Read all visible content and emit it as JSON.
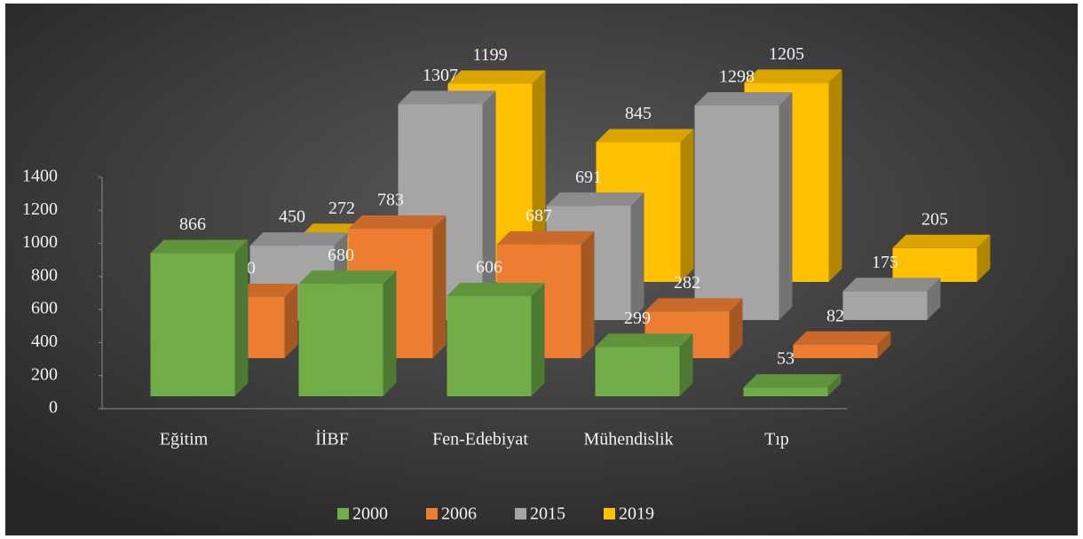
{
  "chart_data": {
    "type": "bar3d",
    "categories": [
      "Eğitim",
      "İİBF",
      "Fen-Edebiyat",
      "Mühendislik",
      "Tıp"
    ],
    "series": [
      {
        "name": "2000",
        "color": "#70ad47",
        "values": [
          866,
          680,
          606,
          299,
          53
        ]
      },
      {
        "name": "2006",
        "color": "#ed7d31",
        "values": [
          370,
          783,
          687,
          282,
          82
        ]
      },
      {
        "name": "2015",
        "color": "#a5a5a5",
        "values": [
          450,
          1307,
          691,
          1298,
          175
        ]
      },
      {
        "name": "2019",
        "color": "#ffc000",
        "values": [
          272,
          1199,
          845,
          1205,
          205
        ]
      }
    ],
    "ylim": [
      0,
      1400
    ],
    "yticks": [
      0,
      200,
      400,
      600,
      800,
      1000,
      1200,
      1400
    ],
    "legend": "bottom"
  }
}
